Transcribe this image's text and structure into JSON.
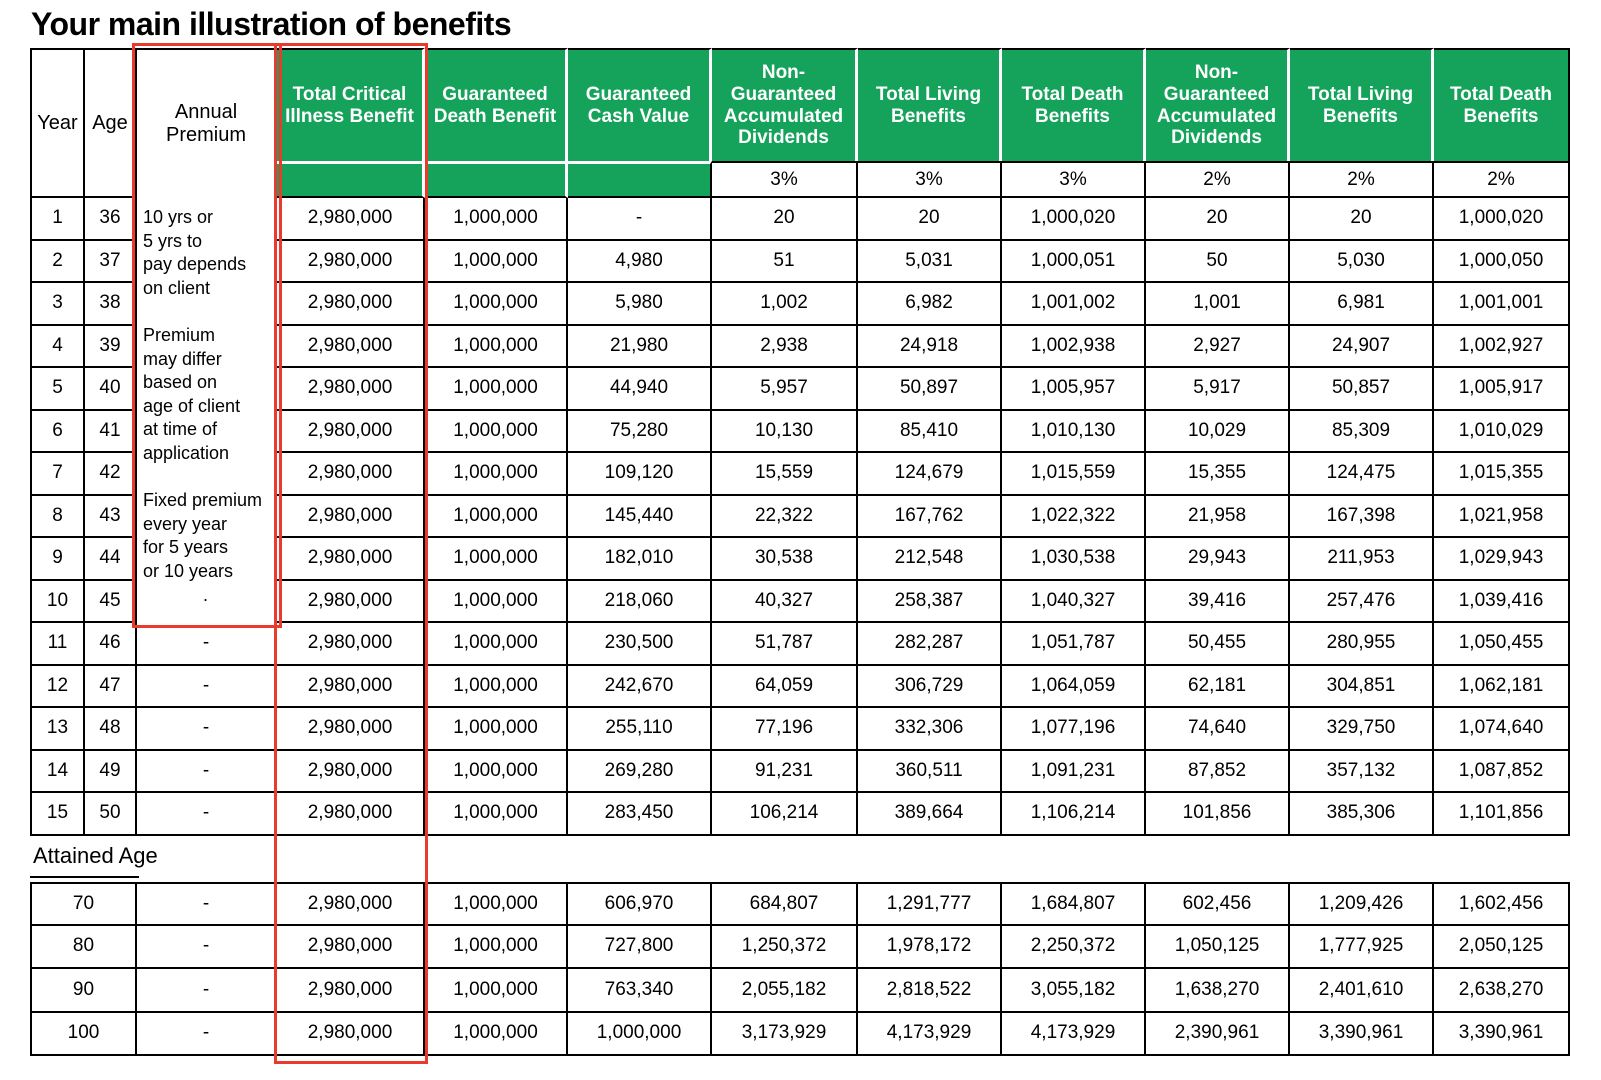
{
  "title": "Your main illustration of benefits",
  "colors": {
    "header_green": "#15A25A",
    "annotation_red": "#E93B2D"
  },
  "table": {
    "col_headers": {
      "year": "Year",
      "age": "Age",
      "annual_premium": "Annual Premium",
      "green_headers": [
        "Total Critical Illness Benefit",
        "Guaranteed Death Benefit",
        "Guaranteed Cash Value",
        "Non-Guaranteed Accumulated Dividends",
        "Total Living Benefits",
        "Total Death Benefits",
        "Non-Guaranteed Accumulated Dividends",
        "Total Living Benefits",
        "Total Death Benefits"
      ],
      "dividend_rates": [
        "3%",
        "3%",
        "3%",
        "2%",
        "2%",
        "2%"
      ]
    },
    "premium_note": "10 yrs or\n5 yrs to\npay depends\non client\n\nPremium\nmay differ\nbased on\nage of client\nat time of\napplication\n\nFixed premium\nevery year\nfor 5 years\nor 10 years\n            .",
    "rows_year_1_10": [
      {
        "year": "1",
        "age": "36",
        "tcib": "2,980,000",
        "gdb": "1,000,000",
        "gcv": "-",
        "ngad3": "20",
        "tlb3": "20",
        "tdb3": "1,000,020",
        "ngad2": "20",
        "tlb2": "20",
        "tdb2": "1,000,020"
      },
      {
        "year": "2",
        "age": "37",
        "tcib": "2,980,000",
        "gdb": "1,000,000",
        "gcv": "4,980",
        "ngad3": "51",
        "tlb3": "5,031",
        "tdb3": "1,000,051",
        "ngad2": "50",
        "tlb2": "5,030",
        "tdb2": "1,000,050"
      },
      {
        "year": "3",
        "age": "38",
        "tcib": "2,980,000",
        "gdb": "1,000,000",
        "gcv": "5,980",
        "ngad3": "1,002",
        "tlb3": "6,982",
        "tdb3": "1,001,002",
        "ngad2": "1,001",
        "tlb2": "6,981",
        "tdb2": "1,001,001"
      },
      {
        "year": "4",
        "age": "39",
        "tcib": "2,980,000",
        "gdb": "1,000,000",
        "gcv": "21,980",
        "ngad3": "2,938",
        "tlb3": "24,918",
        "tdb3": "1,002,938",
        "ngad2": "2,927",
        "tlb2": "24,907",
        "tdb2": "1,002,927"
      },
      {
        "year": "5",
        "age": "40",
        "tcib": "2,980,000",
        "gdb": "1,000,000",
        "gcv": "44,940",
        "ngad3": "5,957",
        "tlb3": "50,897",
        "tdb3": "1,005,957",
        "ngad2": "5,917",
        "tlb2": "50,857",
        "tdb2": "1,005,917"
      },
      {
        "year": "6",
        "age": "41",
        "tcib": "2,980,000",
        "gdb": "1,000,000",
        "gcv": "75,280",
        "ngad3": "10,130",
        "tlb3": "85,410",
        "tdb3": "1,010,130",
        "ngad2": "10,029",
        "tlb2": "85,309",
        "tdb2": "1,010,029"
      },
      {
        "year": "7",
        "age": "42",
        "tcib": "2,980,000",
        "gdb": "1,000,000",
        "gcv": "109,120",
        "ngad3": "15,559",
        "tlb3": "124,679",
        "tdb3": "1,015,559",
        "ngad2": "15,355",
        "tlb2": "124,475",
        "tdb2": "1,015,355"
      },
      {
        "year": "8",
        "age": "43",
        "tcib": "2,980,000",
        "gdb": "1,000,000",
        "gcv": "145,440",
        "ngad3": "22,322",
        "tlb3": "167,762",
        "tdb3": "1,022,322",
        "ngad2": "21,958",
        "tlb2": "167,398",
        "tdb2": "1,021,958"
      },
      {
        "year": "9",
        "age": "44",
        "tcib": "2,980,000",
        "gdb": "1,000,000",
        "gcv": "182,010",
        "ngad3": "30,538",
        "tlb3": "212,548",
        "tdb3": "1,030,538",
        "ngad2": "29,943",
        "tlb2": "211,953",
        "tdb2": "1,029,943"
      },
      {
        "year": "10",
        "age": "45",
        "tcib": "2,980,000",
        "gdb": "1,000,000",
        "gcv": "218,060",
        "ngad3": "40,327",
        "tlb3": "258,387",
        "tdb3": "1,040,327",
        "ngad2": "39,416",
        "tlb2": "257,476",
        "tdb2": "1,039,416"
      }
    ],
    "rows_year_11_15": [
      {
        "year": "11",
        "age": "46",
        "premium": "-",
        "tcib": "2,980,000",
        "gdb": "1,000,000",
        "gcv": "230,500",
        "ngad3": "51,787",
        "tlb3": "282,287",
        "tdb3": "1,051,787",
        "ngad2": "50,455",
        "tlb2": "280,955",
        "tdb2": "1,050,455"
      },
      {
        "year": "12",
        "age": "47",
        "premium": "-",
        "tcib": "2,980,000",
        "gdb": "1,000,000",
        "gcv": "242,670",
        "ngad3": "64,059",
        "tlb3": "306,729",
        "tdb3": "1,064,059",
        "ngad2": "62,181",
        "tlb2": "304,851",
        "tdb2": "1,062,181"
      },
      {
        "year": "13",
        "age": "48",
        "premium": "-",
        "tcib": "2,980,000",
        "gdb": "1,000,000",
        "gcv": "255,110",
        "ngad3": "77,196",
        "tlb3": "332,306",
        "tdb3": "1,077,196",
        "ngad2": "74,640",
        "tlb2": "329,750",
        "tdb2": "1,074,640"
      },
      {
        "year": "14",
        "age": "49",
        "premium": "-",
        "tcib": "2,980,000",
        "gdb": "1,000,000",
        "gcv": "269,280",
        "ngad3": "91,231",
        "tlb3": "360,511",
        "tdb3": "1,091,231",
        "ngad2": "87,852",
        "tlb2": "357,132",
        "tdb2": "1,087,852"
      },
      {
        "year": "15",
        "age": "50",
        "premium": "-",
        "tcib": "2,980,000",
        "gdb": "1,000,000",
        "gcv": "283,450",
        "ngad3": "106,214",
        "tlb3": "389,664",
        "tdb3": "1,106,214",
        "ngad2": "101,856",
        "tlb2": "385,306",
        "tdb2": "1,101,856"
      }
    ],
    "attained_age_label": "Attained Age",
    "attained_rows": [
      {
        "age": "70",
        "premium": "-",
        "tcib": "2,980,000",
        "gdb": "1,000,000",
        "gcv": "606,970",
        "ngad3": "684,807",
        "tlb3": "1,291,777",
        "tdb3": "1,684,807",
        "ngad2": "602,456",
        "tlb2": "1,209,426",
        "tdb2": "1,602,456"
      },
      {
        "age": "80",
        "premium": "-",
        "tcib": "2,980,000",
        "gdb": "1,000,000",
        "gcv": "727,800",
        "ngad3": "1,250,372",
        "tlb3": "1,978,172",
        "tdb3": "2,250,372",
        "ngad2": "1,050,125",
        "tlb2": "1,777,925",
        "tdb2": "2,050,125"
      },
      {
        "age": "90",
        "premium": "-",
        "tcib": "2,980,000",
        "gdb": "1,000,000",
        "gcv": "763,340",
        "ngad3": "2,055,182",
        "tlb3": "2,818,522",
        "tdb3": "3,055,182",
        "ngad2": "1,638,270",
        "tlb2": "2,401,610",
        "tdb2": "2,638,270"
      },
      {
        "age": "100",
        "premium": "-",
        "tcib": "2,980,000",
        "gdb": "1,000,000",
        "gcv": "1,000,000",
        "ngad3": "3,173,929",
        "tlb3": "4,173,929",
        "tdb3": "4,173,929",
        "ngad2": "2,390,961",
        "tlb2": "3,390,961",
        "tdb2": "3,390,961"
      }
    ]
  }
}
